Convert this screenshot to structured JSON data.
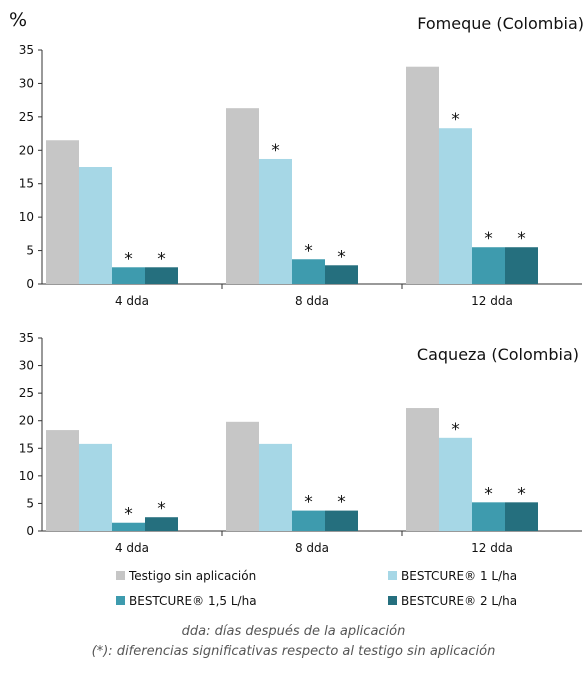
{
  "y_unit": "%",
  "colors": {
    "Testigo sin aplicación": "#c6c6c6",
    "BESTCURE® 1 L/ha": "#a6d7e6",
    "BESTCURE® 1,5 L/ha": "#3e9bae",
    "BESTCURE® 2 L/ha": "#256f7e"
  },
  "chart_data": [
    {
      "type": "bar",
      "title": "Fomeque (Colombia)",
      "categories": [
        "4 dda",
        "8 dda",
        "12 dda"
      ],
      "ylim": [
        0,
        35
      ],
      "yticks": [
        "0",
        "5",
        "10",
        "15",
        "20",
        "25",
        "30",
        "35"
      ],
      "grid": false,
      "series": [
        {
          "name": "Testigo sin aplicación",
          "values": [
            21.5,
            26.3,
            32.5
          ],
          "marks": [
            "",
            "",
            ""
          ]
        },
        {
          "name": "BESTCURE® 1 L/ha",
          "values": [
            17.5,
            18.7,
            23.3
          ],
          "marks": [
            "",
            "*",
            "*"
          ]
        },
        {
          "name": "BESTCURE® 1,5 L/ha",
          "values": [
            2.5,
            3.7,
            5.5
          ],
          "marks": [
            "*",
            "*",
            "*"
          ]
        },
        {
          "name": "BESTCURE® 2 L/ha",
          "values": [
            2.5,
            2.8,
            5.5
          ],
          "marks": [
            "*",
            "*",
            "*"
          ]
        }
      ]
    },
    {
      "type": "bar",
      "title": "Caqueza (Colombia)",
      "categories": [
        "4 dda",
        "8 dda",
        "12 dda"
      ],
      "ylim": [
        0,
        35
      ],
      "yticks": [
        "0",
        "5",
        "10",
        "15",
        "20",
        "25",
        "30",
        "35"
      ],
      "grid": false,
      "series": [
        {
          "name": "Testigo sin aplicación",
          "values": [
            18.3,
            19.8,
            22.3
          ],
          "marks": [
            "",
            "",
            ""
          ]
        },
        {
          "name": "BESTCURE® 1 L/ha",
          "values": [
            15.8,
            15.8,
            16.9
          ],
          "marks": [
            "",
            "",
            "*"
          ]
        },
        {
          "name": "BESTCURE® 1,5 L/ha",
          "values": [
            1.5,
            3.7,
            5.2
          ],
          "marks": [
            "*",
            "*",
            "*"
          ]
        },
        {
          "name": "BESTCURE® 2 L/ha",
          "values": [
            2.5,
            3.7,
            5.2
          ],
          "marks": [
            "*",
            "*",
            "*"
          ]
        }
      ]
    }
  ],
  "legend": [
    {
      "label": "Testigo sin aplicación",
      "color": "#c6c6c6"
    },
    {
      "label": "BESTCURE® 1 L/ha",
      "color": "#a6d7e6"
    },
    {
      "label": "BESTCURE® 1,5 L/ha",
      "color": "#3e9bae"
    },
    {
      "label": "BESTCURE® 2 L/ha",
      "color": "#256f7e"
    }
  ],
  "footnotes": {
    "line1": "dda: días después de la aplicación",
    "line2": "(*): diferencias significativas respecto al testigo sin aplicación"
  }
}
